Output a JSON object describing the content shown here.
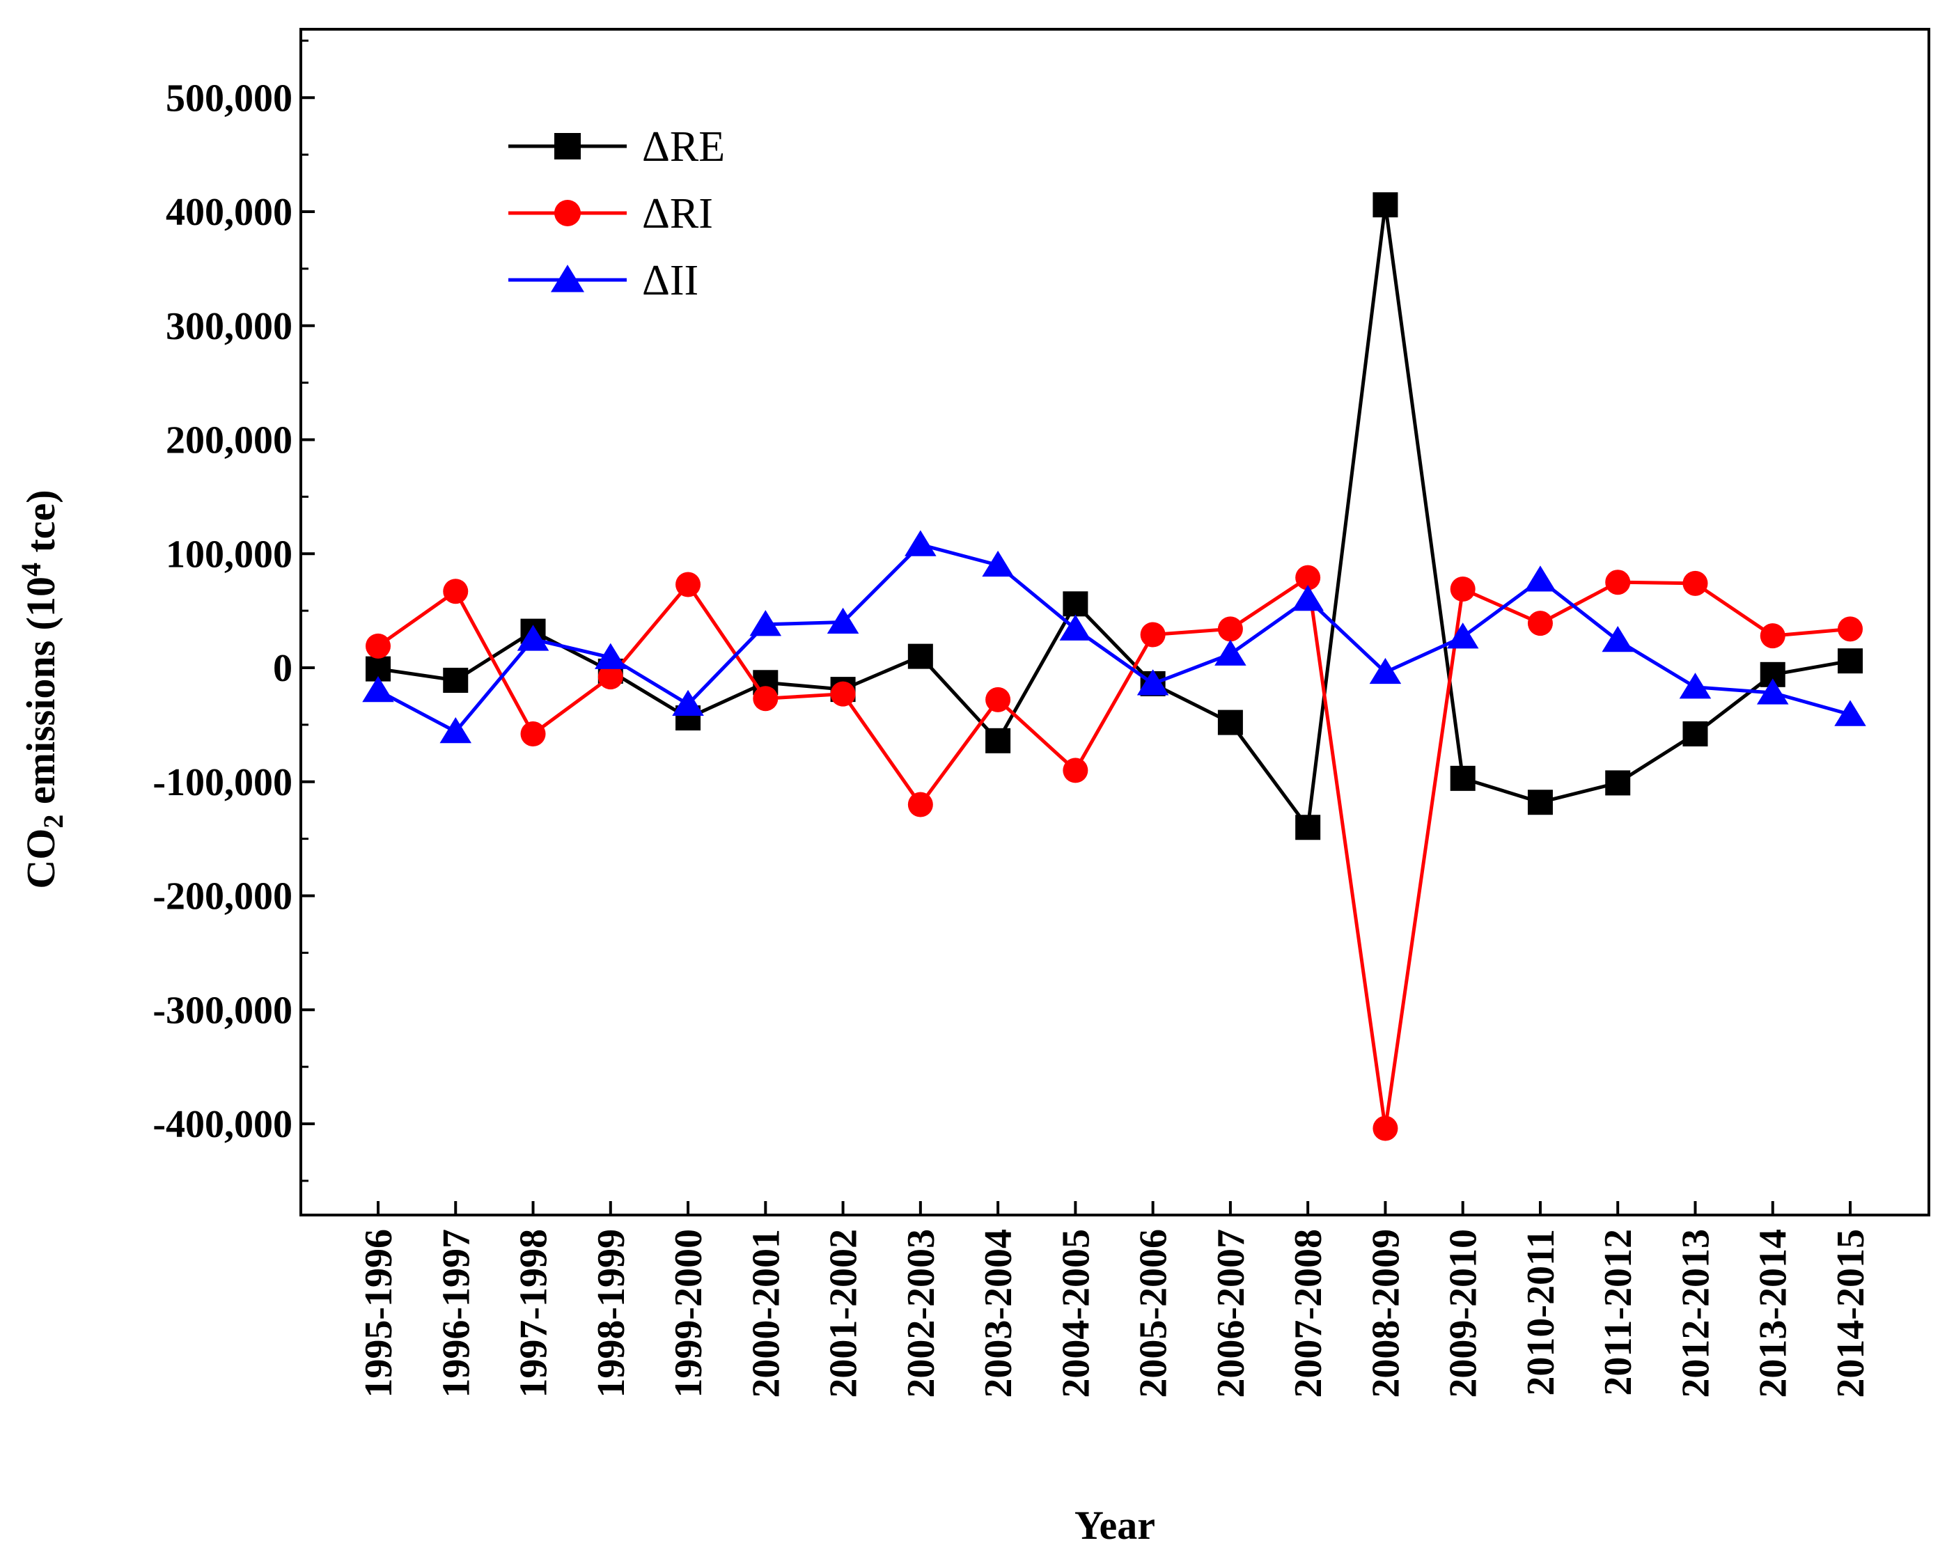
{
  "chart_data": {
    "type": "line",
    "title": "",
    "xlabel": "Year",
    "ylabel": {
      "prefix": "CO",
      "subscript": "2",
      "middle": " emissions (10",
      "superscript": "4",
      "suffix": " tce)"
    },
    "ylim": [
      -480000,
      560000
    ],
    "yticks": [
      -400000,
      -300000,
      -200000,
      -100000,
      0,
      100000,
      200000,
      300000,
      400000,
      500000
    ],
    "ytick_labels": [
      "-400,000",
      "-300,000",
      "-200,000",
      "-100,000",
      "0",
      "100,000",
      "200,000",
      "300,000",
      "400,000",
      "500,000"
    ],
    "grid": false,
    "legend_position": "top-left",
    "categories": [
      "1995-1996",
      "1996-1997",
      "1997-1998",
      "1998-1999",
      "1999-2000",
      "2000-2001",
      "2001-2002",
      "2002-2003",
      "2003-2004",
      "2004-2005",
      "2005-2006",
      "2006-2007",
      "2007-2008",
      "2008-2009",
      "2009-2010",
      "2010-2011",
      "2011-2012",
      "2012-2013",
      "2013-2014",
      "2014-2015"
    ],
    "series": [
      {
        "name": "ΔRE",
        "color": "#000000",
        "marker": "square",
        "values": [
          -1000,
          -11000,
          32000,
          -3000,
          -44000,
          -13000,
          -19000,
          10000,
          -64000,
          56000,
          -14000,
          -48000,
          -140000,
          406000,
          -97000,
          -118000,
          -101000,
          -58000,
          -6000,
          6000
        ]
      },
      {
        "name": "ΔRI",
        "color": "#ff0000",
        "marker": "circle",
        "values": [
          19000,
          67000,
          -58000,
          -8000,
          73000,
          -27000,
          -23000,
          -120000,
          -28000,
          -90000,
          29000,
          34000,
          79000,
          -404000,
          69000,
          39000,
          75000,
          74000,
          28000,
          34000
        ]
      },
      {
        "name": "ΔII",
        "color": "#0000ff",
        "marker": "triangle",
        "values": [
          -20000,
          -56000,
          25000,
          9000,
          -32000,
          38000,
          40000,
          108000,
          90000,
          34000,
          -14000,
          12000,
          60000,
          -4000,
          27000,
          77000,
          24000,
          -17000,
          -22000,
          -41000
        ]
      }
    ]
  }
}
